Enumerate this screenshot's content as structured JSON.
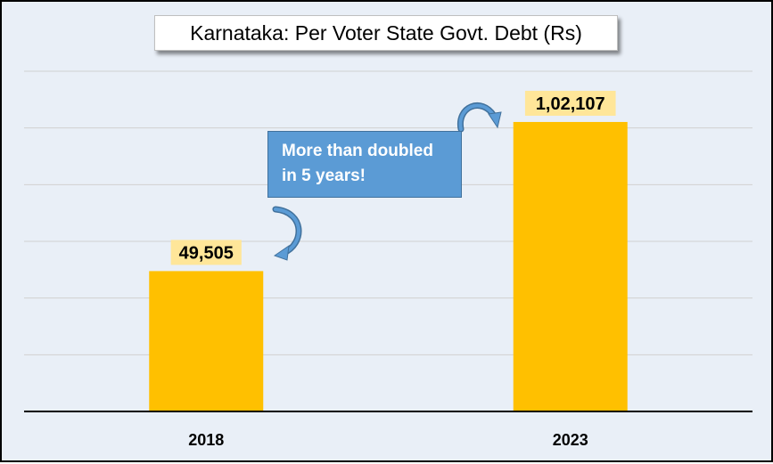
{
  "chart_data": {
    "type": "bar",
    "title": "Karnataka: Per Voter State Govt. Debt (Rs)",
    "categories": [
      "2018",
      "2023"
    ],
    "values": [
      49505,
      102107
    ],
    "data_labels": [
      "49,505",
      "1,02,107"
    ],
    "ylim": [
      0,
      120000
    ],
    "grid": true,
    "annotation": {
      "lines": [
        "More than doubled",
        "in 5 years!"
      ]
    },
    "colors": {
      "bar": "#ffc000",
      "label_bg": "#ffe699",
      "plot_bg": "#e9eff7",
      "gridline": "#d0d0d0",
      "callout_bg": "#5b9bd5",
      "arrow": "#5b9bd5"
    }
  }
}
